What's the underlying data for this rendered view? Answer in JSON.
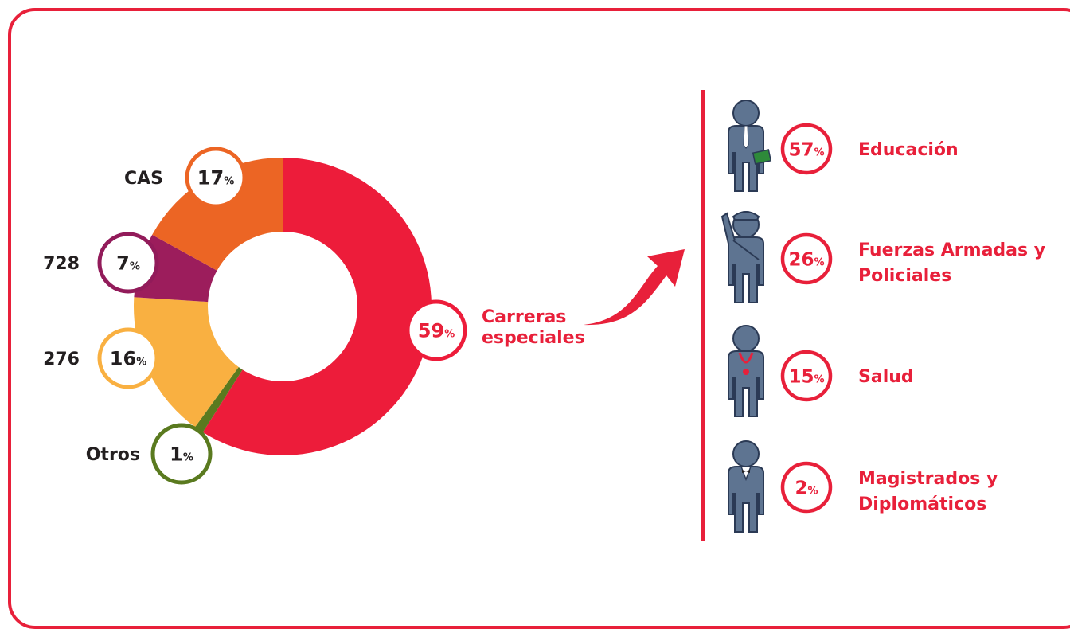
{
  "chart_data": {
    "type": "pie",
    "slices": [
      {
        "key": "especiales",
        "label": "Carreras especiales",
        "value": 59,
        "color": "#ed1c3a",
        "ring": "#ed1c3a"
      },
      {
        "key": "otros",
        "label": "Otros",
        "value": 1,
        "color": "#5a7a1f",
        "ring": "#5a7a1f"
      },
      {
        "key": "d276",
        "label": "276",
        "value": 16,
        "color": "#f9b041",
        "ring": "#f9b041"
      },
      {
        "key": "d728",
        "label": "728",
        "value": 7,
        "color": "#9c1d5c",
        "ring": "#921b5a"
      },
      {
        "key": "cas",
        "label": "CAS",
        "value": 17,
        "color": "#ec6524",
        "ring": "#ec6524"
      }
    ],
    "special_breakdown": [
      {
        "label": "Educación",
        "value": 57,
        "icon": "teacher-icon"
      },
      {
        "label": "Fuerzas Armadas y Policiales",
        "value": 26,
        "icon": "soldier-icon"
      },
      {
        "label": "Salud",
        "value": 15,
        "icon": "doctor-icon"
      },
      {
        "label": "Magistrados y Diplomáticos",
        "value": 2,
        "icon": "diplomat-icon"
      }
    ]
  },
  "labels": {
    "especiales_lines": [
      "Carreras",
      "especiales"
    ],
    "breakdown_lines": [
      [
        "Educación"
      ],
      [
        "Fuerzas Armadas y",
        "Policiales"
      ],
      [
        "Salud"
      ],
      [
        "Magistrados y",
        "Diplomáticos"
      ]
    ],
    "percent_sign": "%"
  },
  "colors": {
    "accent": "#e8203a",
    "figure": "#5e7491",
    "figure_outline": "#2b3a55"
  }
}
